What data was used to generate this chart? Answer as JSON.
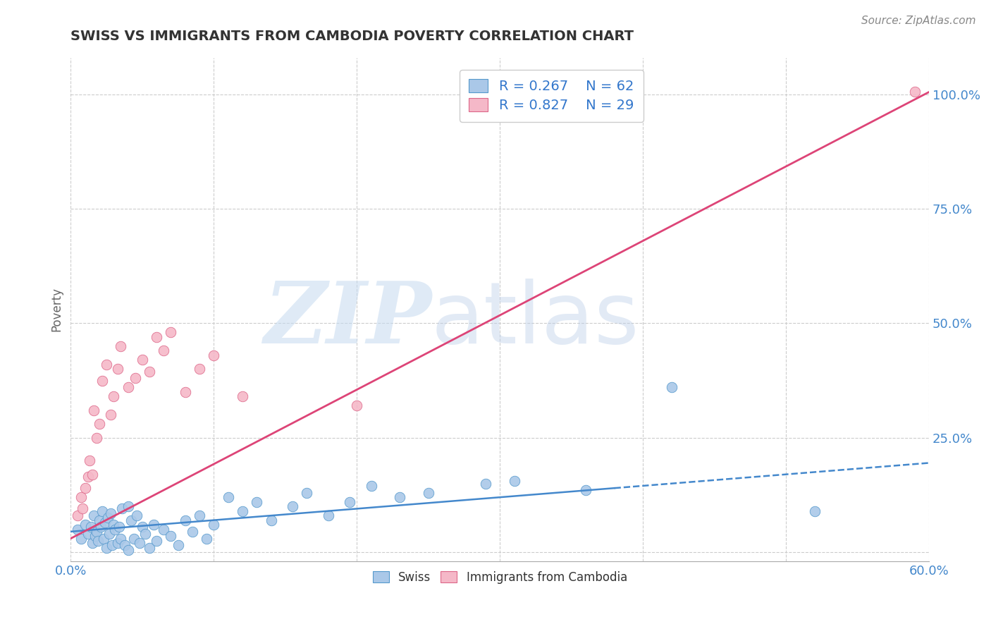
{
  "title": "SWISS VS IMMIGRANTS FROM CAMBODIA POVERTY CORRELATION CHART",
  "source_text": "Source: ZipAtlas.com",
  "ylabel": "Poverty",
  "watermark_zip": "ZIP",
  "watermark_atlas": "atlas",
  "xlim": [
    0.0,
    0.6
  ],
  "ylim": [
    -0.02,
    1.08
  ],
  "yticks": [
    0.0,
    0.25,
    0.5,
    0.75,
    1.0
  ],
  "ytick_labels": [
    "",
    "25.0%",
    "50.0%",
    "75.0%",
    "100.0%"
  ],
  "xticks": [
    0.0,
    0.1,
    0.2,
    0.3,
    0.4,
    0.5,
    0.6
  ],
  "xtick_labels": [
    "0.0%",
    "",
    "",
    "",
    "",
    "",
    "60.0%"
  ],
  "swiss_R": 0.267,
  "swiss_N": 62,
  "cambodia_R": 0.827,
  "cambodia_N": 29,
  "swiss_color": "#aac8e8",
  "swiss_edge_color": "#5599cc",
  "swiss_line_color": "#4488cc",
  "cambodia_color": "#f5b8c8",
  "cambodia_edge_color": "#dd6688",
  "cambodia_line_color": "#dd4477",
  "legend_text_color": "#3377cc",
  "title_color": "#333333",
  "background_color": "#ffffff",
  "grid_color": "#cccccc",
  "swiss_scatter_x": [
    0.005,
    0.007,
    0.01,
    0.012,
    0.014,
    0.015,
    0.016,
    0.017,
    0.018,
    0.019,
    0.02,
    0.021,
    0.022,
    0.023,
    0.024,
    0.025,
    0.026,
    0.027,
    0.028,
    0.029,
    0.03,
    0.031,
    0.033,
    0.034,
    0.035,
    0.036,
    0.038,
    0.04,
    0.04,
    0.042,
    0.044,
    0.046,
    0.048,
    0.05,
    0.052,
    0.055,
    0.058,
    0.06,
    0.065,
    0.07,
    0.075,
    0.08,
    0.085,
    0.09,
    0.095,
    0.1,
    0.11,
    0.12,
    0.13,
    0.14,
    0.155,
    0.165,
    0.18,
    0.195,
    0.21,
    0.23,
    0.25,
    0.29,
    0.31,
    0.36,
    0.42,
    0.52
  ],
  "swiss_scatter_y": [
    0.05,
    0.03,
    0.06,
    0.04,
    0.055,
    0.02,
    0.08,
    0.035,
    0.045,
    0.025,
    0.07,
    0.055,
    0.09,
    0.03,
    0.065,
    0.01,
    0.075,
    0.04,
    0.085,
    0.015,
    0.06,
    0.05,
    0.02,
    0.055,
    0.03,
    0.095,
    0.015,
    0.1,
    0.005,
    0.07,
    0.03,
    0.08,
    0.02,
    0.055,
    0.04,
    0.01,
    0.06,
    0.025,
    0.05,
    0.035,
    0.015,
    0.07,
    0.045,
    0.08,
    0.03,
    0.06,
    0.12,
    0.09,
    0.11,
    0.07,
    0.1,
    0.13,
    0.08,
    0.11,
    0.145,
    0.12,
    0.13,
    0.15,
    0.155,
    0.135,
    0.36,
    0.09
  ],
  "cambodia_scatter_x": [
    0.005,
    0.007,
    0.008,
    0.01,
    0.012,
    0.013,
    0.015,
    0.016,
    0.018,
    0.02,
    0.022,
    0.025,
    0.028,
    0.03,
    0.033,
    0.035,
    0.04,
    0.045,
    0.05,
    0.055,
    0.06,
    0.065,
    0.07,
    0.08,
    0.09,
    0.1,
    0.12,
    0.2,
    0.59
  ],
  "cambodia_scatter_y": [
    0.08,
    0.12,
    0.095,
    0.14,
    0.165,
    0.2,
    0.17,
    0.31,
    0.25,
    0.28,
    0.375,
    0.41,
    0.3,
    0.34,
    0.4,
    0.45,
    0.36,
    0.38,
    0.42,
    0.395,
    0.47,
    0.44,
    0.48,
    0.35,
    0.4,
    0.43,
    0.34,
    0.32,
    1.005
  ],
  "swiss_line_x": [
    0.0,
    0.6
  ],
  "swiss_line_y": [
    0.045,
    0.195
  ],
  "swiss_line_dashed_start": 0.38,
  "cambodia_line_x": [
    0.0,
    0.6
  ],
  "cambodia_line_y": [
    0.03,
    1.005
  ]
}
